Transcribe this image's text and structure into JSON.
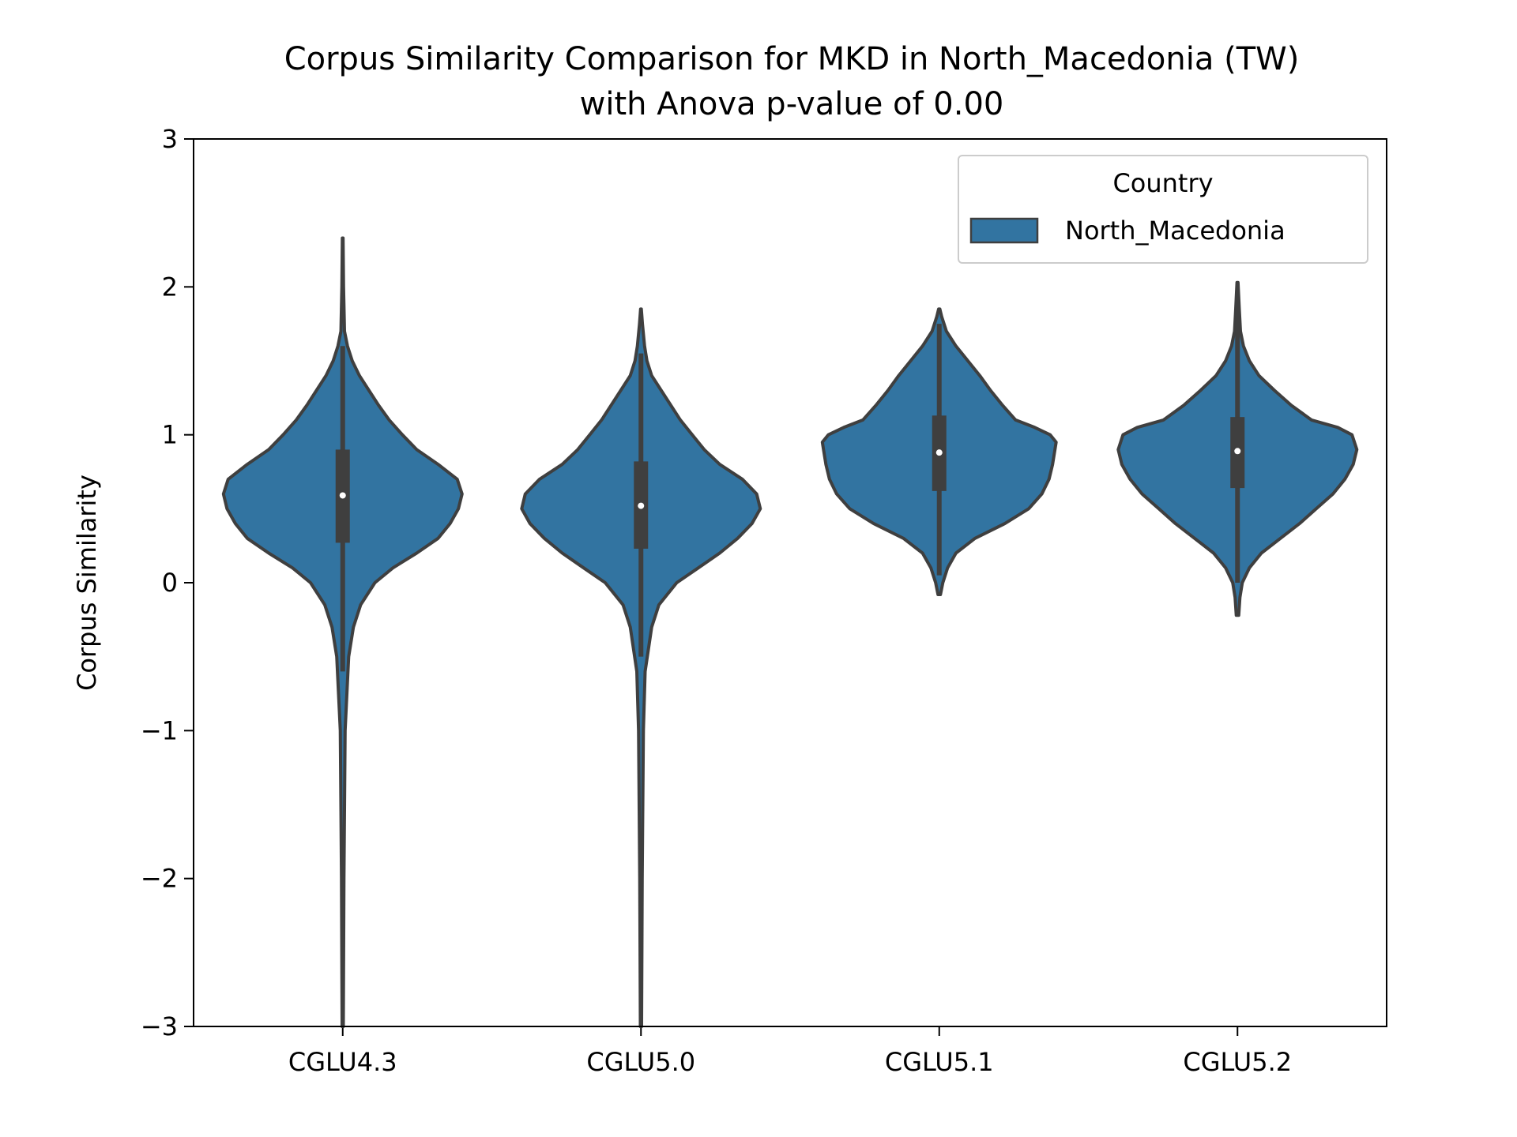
{
  "chart_data": {
    "type": "violin",
    "title_line1": "Corpus Similarity Comparison for MKD in North_Macedonia (TW)",
    "title_line2": "with Anova p-value of 0.00",
    "xlabel": "",
    "ylabel": "Corpus Similarity",
    "ylim": [
      -3,
      3
    ],
    "yticks": [
      3,
      2,
      1,
      0,
      -1,
      -2,
      -3
    ],
    "ytick_labels": [
      "3",
      "2",
      "1",
      "0",
      "−1",
      "−2",
      "−3"
    ],
    "categories": [
      "CGLU4.3",
      "CGLU5.0",
      "CGLU5.1",
      "CGLU5.2"
    ],
    "legend": {
      "title": "Country",
      "entries": [
        "North_Macedonia"
      ],
      "position": "upper-right"
    },
    "colors": {
      "fill": "#3274a1",
      "edge": "#3f3f3f",
      "median": "#ffffff"
    },
    "series": [
      {
        "category": "CGLU4.3",
        "min": -3.0,
        "max": 2.33,
        "q1": 0.27,
        "median": 0.59,
        "q3": 0.9,
        "whisker_low": -0.6,
        "whisker_high": 1.6,
        "density": [
          [
            -3.0,
            0.005
          ],
          [
            -2.0,
            0.01
          ],
          [
            -1.0,
            0.02
          ],
          [
            -0.5,
            0.05
          ],
          [
            -0.3,
            0.09
          ],
          [
            -0.15,
            0.15
          ],
          [
            0.0,
            0.27
          ],
          [
            0.1,
            0.42
          ],
          [
            0.2,
            0.62
          ],
          [
            0.3,
            0.8
          ],
          [
            0.4,
            0.9
          ],
          [
            0.5,
            0.97
          ],
          [
            0.6,
            1.0
          ],
          [
            0.7,
            0.96
          ],
          [
            0.8,
            0.8
          ],
          [
            0.9,
            0.62
          ],
          [
            1.0,
            0.5
          ],
          [
            1.1,
            0.39
          ],
          [
            1.2,
            0.3
          ],
          [
            1.3,
            0.22
          ],
          [
            1.4,
            0.14
          ],
          [
            1.5,
            0.08
          ],
          [
            1.6,
            0.04
          ],
          [
            1.7,
            0.015
          ],
          [
            2.0,
            0.007
          ],
          [
            2.33,
            0.003
          ]
        ]
      },
      {
        "category": "CGLU5.0",
        "min": -3.0,
        "max": 1.85,
        "q1": 0.23,
        "median": 0.52,
        "q3": 0.82,
        "whisker_low": -0.5,
        "whisker_high": 1.55,
        "density": [
          [
            -3.0,
            0.005
          ],
          [
            -2.0,
            0.01
          ],
          [
            -1.0,
            0.02
          ],
          [
            -0.6,
            0.035
          ],
          [
            -0.3,
            0.09
          ],
          [
            -0.15,
            0.15
          ],
          [
            0.0,
            0.3
          ],
          [
            0.1,
            0.48
          ],
          [
            0.2,
            0.66
          ],
          [
            0.3,
            0.81
          ],
          [
            0.4,
            0.93
          ],
          [
            0.5,
            1.0
          ],
          [
            0.6,
            0.97
          ],
          [
            0.7,
            0.85
          ],
          [
            0.8,
            0.66
          ],
          [
            0.9,
            0.53
          ],
          [
            1.0,
            0.43
          ],
          [
            1.1,
            0.33
          ],
          [
            1.2,
            0.25
          ],
          [
            1.3,
            0.17
          ],
          [
            1.4,
            0.09
          ],
          [
            1.5,
            0.05
          ],
          [
            1.6,
            0.03
          ],
          [
            1.75,
            0.012
          ],
          [
            1.85,
            0.003
          ]
        ]
      },
      {
        "category": "CGLU5.1",
        "min": -0.08,
        "max": 1.85,
        "q1": 0.62,
        "median": 0.88,
        "q3": 1.13,
        "whisker_low": 0.05,
        "whisker_high": 1.75,
        "density": [
          [
            -0.08,
            0.01
          ],
          [
            0.0,
            0.03
          ],
          [
            0.1,
            0.07
          ],
          [
            0.2,
            0.14
          ],
          [
            0.3,
            0.3
          ],
          [
            0.4,
            0.55
          ],
          [
            0.5,
            0.75
          ],
          [
            0.6,
            0.86
          ],
          [
            0.7,
            0.92
          ],
          [
            0.8,
            0.95
          ],
          [
            0.9,
            0.97
          ],
          [
            0.95,
            0.98
          ],
          [
            1.0,
            0.93
          ],
          [
            1.05,
            0.8
          ],
          [
            1.1,
            0.64
          ],
          [
            1.2,
            0.53
          ],
          [
            1.3,
            0.43
          ],
          [
            1.4,
            0.34
          ],
          [
            1.5,
            0.24
          ],
          [
            1.6,
            0.14
          ],
          [
            1.7,
            0.06
          ],
          [
            1.8,
            0.02
          ],
          [
            1.85,
            0.005
          ]
        ]
      },
      {
        "category": "CGLU5.2",
        "min": -0.22,
        "max": 2.03,
        "q1": 0.64,
        "median": 0.89,
        "q3": 1.12,
        "whisker_low": 0.0,
        "whisker_high": 1.9,
        "density": [
          [
            -0.22,
            0.01
          ],
          [
            -0.1,
            0.02
          ],
          [
            0.0,
            0.04
          ],
          [
            0.1,
            0.1
          ],
          [
            0.2,
            0.2
          ],
          [
            0.3,
            0.36
          ],
          [
            0.4,
            0.52
          ],
          [
            0.5,
            0.66
          ],
          [
            0.6,
            0.8
          ],
          [
            0.7,
            0.9
          ],
          [
            0.8,
            0.97
          ],
          [
            0.9,
            1.0
          ],
          [
            1.0,
            0.96
          ],
          [
            1.05,
            0.84
          ],
          [
            1.1,
            0.62
          ],
          [
            1.2,
            0.45
          ],
          [
            1.3,
            0.31
          ],
          [
            1.4,
            0.18
          ],
          [
            1.5,
            0.1
          ],
          [
            1.6,
            0.05
          ],
          [
            1.7,
            0.025
          ],
          [
            1.85,
            0.015
          ],
          [
            2.03,
            0.004
          ]
        ]
      }
    ]
  }
}
